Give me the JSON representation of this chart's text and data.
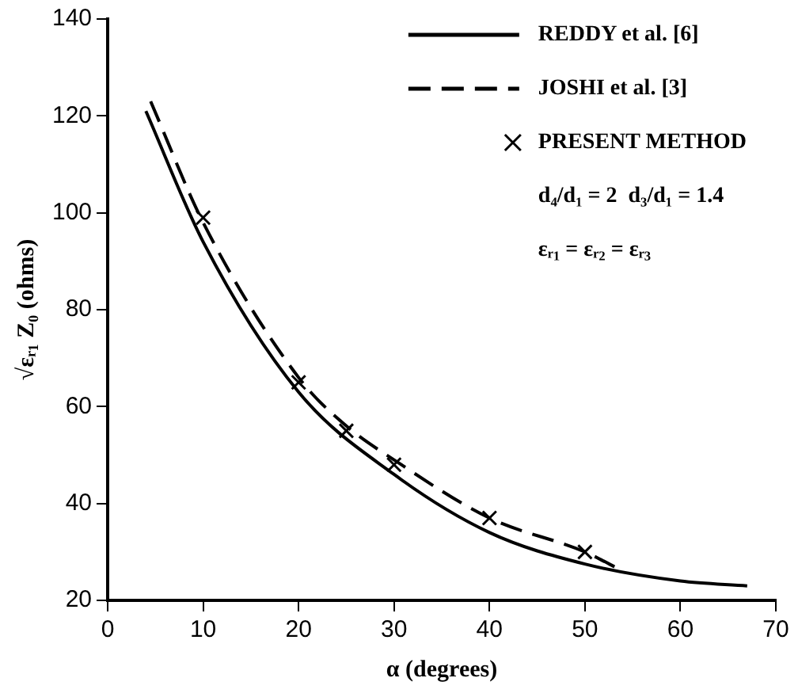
{
  "chart_data": {
    "type": "line",
    "xlabel": "α (degrees)",
    "ylabel": "√εᵣ₁ Z₀ (ohms)",
    "xlim": [
      0,
      70
    ],
    "xticks": [
      0,
      10,
      20,
      30,
      40,
      50,
      60,
      70
    ],
    "ylim": [
      20,
      140
    ],
    "yticks": [
      20,
      40,
      60,
      80,
      100,
      120,
      140
    ],
    "grid": false,
    "legend": "top right",
    "series": [
      {
        "name": "REDDY et al. [6]",
        "type": "line",
        "color": "#000000",
        "line_style": "solid",
        "marker": "none",
        "x": [
          4,
          10,
          20,
          30,
          40,
          50,
          60,
          67
        ],
        "values": [
          121,
          94,
          63,
          46,
          34,
          27.5,
          24,
          23
        ]
      },
      {
        "name": "JOSHI et al. [3]",
        "type": "line",
        "color": "#000000",
        "line_style": "dashed",
        "marker": "none",
        "x": [
          4.5,
          10,
          20,
          25,
          30,
          40,
          50,
          54
        ],
        "values": [
          123,
          98,
          66,
          56,
          49,
          37,
          30,
          26
        ]
      },
      {
        "name": "PRESENT METHOD",
        "type": "scatter",
        "color": "#000000",
        "marker": "cross",
        "x": [
          10,
          20,
          25,
          30,
          40,
          50
        ],
        "values": [
          99,
          65,
          55,
          48,
          37,
          30
        ]
      }
    ],
    "annotations": [
      "d₄/d₁ = 2  d₃/d₁ = 1.4",
      "εᵣ₁ = εᵣ₂ = εᵣ₃"
    ]
  }
}
